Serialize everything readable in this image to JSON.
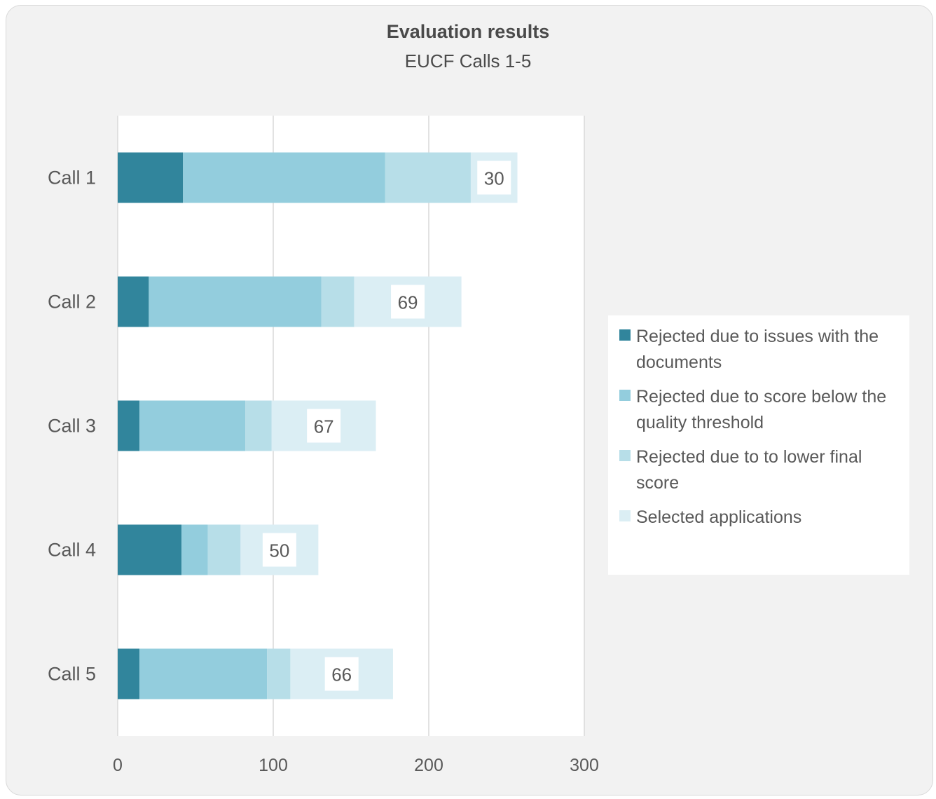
{
  "chart_data": {
    "type": "bar",
    "orientation": "horizontal",
    "stacked": true,
    "title": "Evaluation results",
    "subtitle": "EUCF Calls 1-5",
    "categories": [
      "Call 1",
      "Call 2",
      "Call 3",
      "Call 4",
      "Call 5"
    ],
    "series": [
      {
        "name": "Rejected due to issues with the documents",
        "values": [
          42,
          20,
          14,
          41,
          14
        ],
        "color": "#31859c"
      },
      {
        "name": "Rejected due to score below the quality threshold",
        "values": [
          130,
          111,
          68,
          17,
          82
        ],
        "color": "#93cddd"
      },
      {
        "name": "Rejected due to to lower final score",
        "values": [
          55,
          21,
          17,
          21,
          15
        ],
        "color": "#b7dee8"
      },
      {
        "name": "Selected applications",
        "values": [
          30,
          69,
          67,
          50,
          66
        ],
        "color": "#dbeef4"
      }
    ],
    "data_labels_series": "Selected applications",
    "xlim": [
      0,
      300
    ],
    "xticks": [
      0,
      100,
      200,
      300
    ],
    "grid": true,
    "legend_position": "right"
  }
}
